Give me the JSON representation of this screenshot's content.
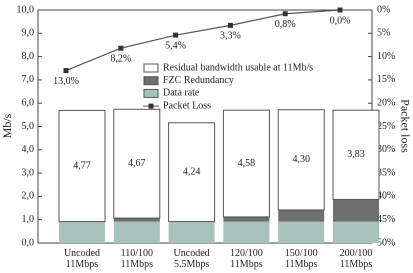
{
  "chart_data": {
    "type": "bar",
    "y_label": "Mb/s",
    "y2_label": "Packet loss",
    "categories": [
      "Uncoded\n11Mbps",
      "110/100\n11Mbps",
      "Uncoded\n5.5Mbps",
      "120/100\n11Mbps",
      "150/100\n11Mbps",
      "200/100\n11Mbps"
    ],
    "stacked": true,
    "series": [
      {
        "name": "Data rate",
        "color": "#a7c1bb",
        "values": [
          0.92,
          0.92,
          0.92,
          0.92,
          0.92,
          0.92
        ]
      },
      {
        "name": "FZC Redundancy",
        "color": "#6f6f6f",
        "values": [
          0,
          0.15,
          0,
          0.2,
          0.5,
          0.95
        ]
      },
      {
        "name": "Residual bandwidth usable at 11Mb/s",
        "color": "#ffffff",
        "values": [
          4.77,
          4.67,
          4.24,
          4.58,
          4.3,
          3.83
        ],
        "value_labels": [
          "4,77",
          "4,67",
          "4,24",
          "4,58",
          "4,30",
          "3,83"
        ]
      },
      {
        "name": "Packet Loss",
        "type": "line",
        "axis": "y2",
        "color": "#555555",
        "values": [
          13.0,
          8.2,
          5.4,
          3.3,
          0.8,
          0.0
        ],
        "value_labels": [
          "13,0%",
          "8,2%",
          "5,4%",
          "3,3%",
          "0,8%",
          "0,0%"
        ]
      }
    ],
    "ylim": [
      0,
      10
    ],
    "yticks": [
      {
        "value": 0,
        "label": "0,0"
      },
      {
        "value": 1,
        "label": "1,0"
      },
      {
        "value": 2,
        "label": "2,0"
      },
      {
        "value": 3,
        "label": "3,0"
      },
      {
        "value": 4,
        "label": "4,0"
      },
      {
        "value": 5,
        "label": "5,0"
      },
      {
        "value": 6,
        "label": "6,0"
      },
      {
        "value": 7,
        "label": "7,0"
      },
      {
        "value": 8,
        "label": "8,0"
      },
      {
        "value": 9,
        "label": "9,0"
      },
      {
        "value": 10,
        "label": "10,0"
      }
    ],
    "y2lim": [
      50,
      0
    ],
    "y2ticks": [
      {
        "value": 0,
        "label": "0%"
      },
      {
        "value": 5,
        "label": "5%"
      },
      {
        "value": 10,
        "label": "10%"
      },
      {
        "value": 15,
        "label": "15%"
      },
      {
        "value": 20,
        "label": "20%"
      },
      {
        "value": 25,
        "label": "25%"
      },
      {
        "value": 30,
        "label": "30%"
      },
      {
        "value": 35,
        "label": "35%"
      },
      {
        "value": 40,
        "label": "40%"
      },
      {
        "value": 45,
        "label": "45%"
      },
      {
        "value": 50,
        "label": "50%"
      }
    ],
    "legend_order": [
      2,
      1,
      0,
      3
    ]
  }
}
